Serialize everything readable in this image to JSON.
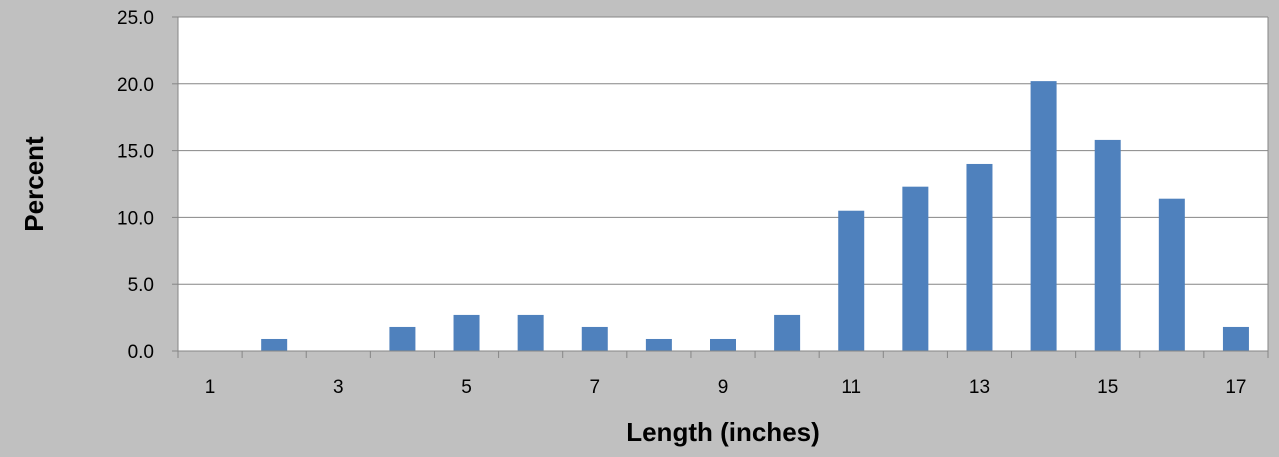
{
  "chart_data": {
    "type": "bar",
    "categories": [
      "1",
      "2",
      "3",
      "4",
      "5",
      "6",
      "7",
      "8",
      "9",
      "10",
      "11",
      "12",
      "13",
      "14",
      "15",
      "16",
      "17"
    ],
    "category_tick_labels": [
      "1",
      "",
      "3",
      "",
      "5",
      "",
      "7",
      "",
      "9",
      "",
      "11",
      "",
      "13",
      "",
      "15",
      "",
      "17"
    ],
    "values": [
      0,
      0.9,
      0,
      1.8,
      2.7,
      2.7,
      1.8,
      0.9,
      0.9,
      2.7,
      10.5,
      12.3,
      14.0,
      20.2,
      15.8,
      11.4,
      1.8
    ],
    "xlabel": "Length (inches)",
    "ylabel": "Percent",
    "ylim": [
      0,
      25
    ],
    "y_ticks": [
      "0.0",
      "5.0",
      "10.0",
      "15.0",
      "20.0",
      "25.0"
    ],
    "grid": true,
    "bar_color": "#4f81bd",
    "plot_background": "#ffffff",
    "chart_background": "#c0c0c0"
  }
}
